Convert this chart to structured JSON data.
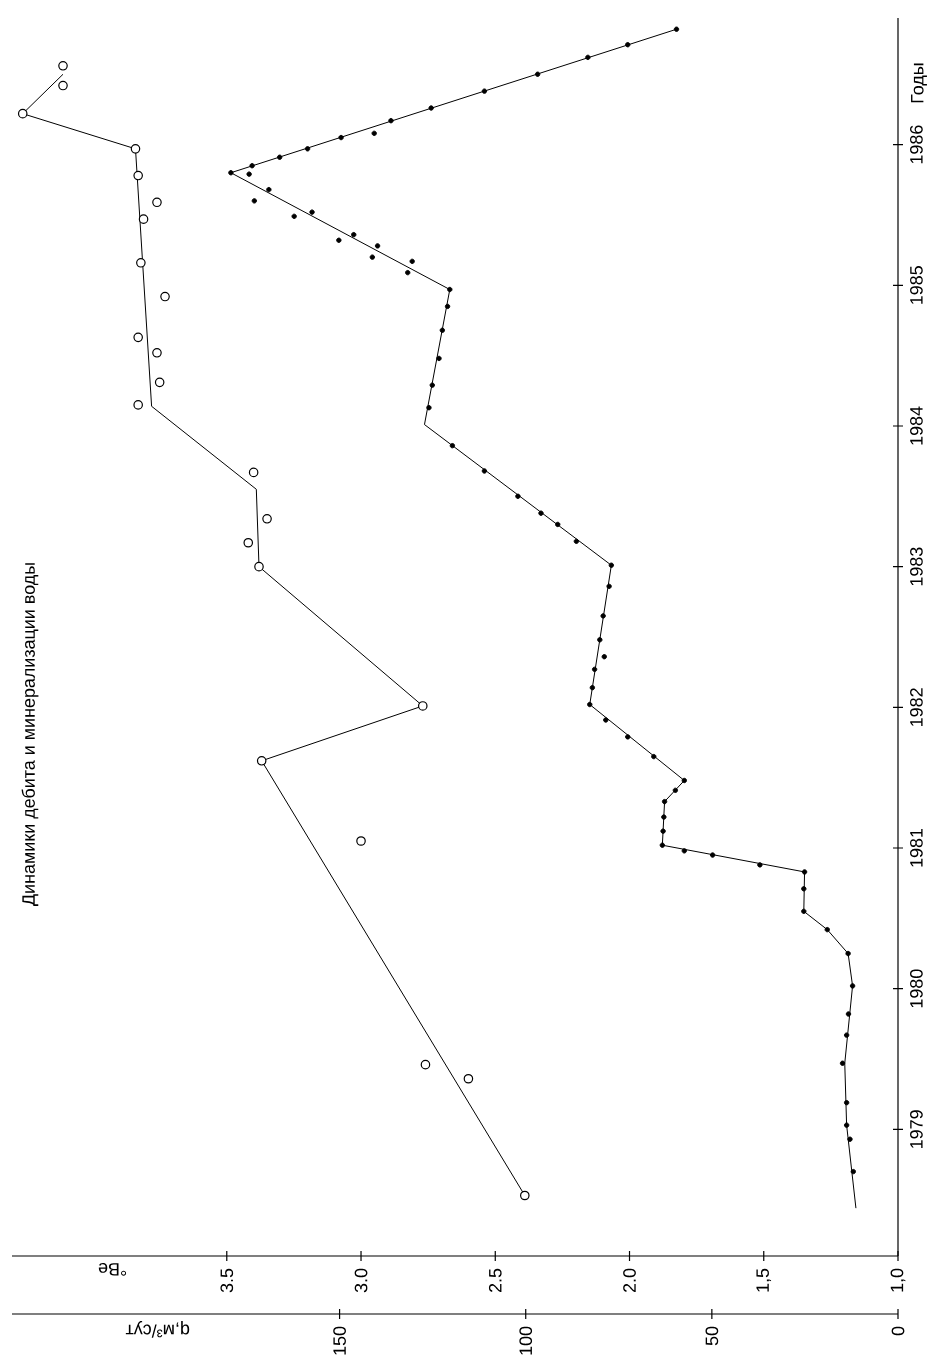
{
  "chart_data": {
    "type": "line",
    "title": "Динамики дебита и минерализации воды",
    "xlabel": "q,м³/сут",
    "x2label": "°Be",
    "ylabel": "Годы",
    "ylim": [
      1978.1,
      1986.9
    ],
    "yticks": [
      1979,
      1980,
      1981,
      1982,
      1983,
      1984,
      1985,
      1986
    ],
    "xlim": [
      238,
      0
    ],
    "xticks": [
      0,
      50,
      100,
      150
    ],
    "x2lim": [
      4.3,
      1.0
    ],
    "x2ticks": [
      {
        "value": 1.0,
        "label": "1,0"
      },
      {
        "value": 1.5,
        "label": "1,5"
      },
      {
        "value": 2.0,
        "label": "2.0"
      },
      2.5,
      {
        "value": 3.0,
        "label": "3.0"
      },
      3.5
    ],
    "series": [
      {
        "type": "scatter",
        "color": "#000000",
        "marker": "circle",
        "values": [
          1978.7,
          1978.93,
          1979.03,
          1979.19,
          1979.47,
          1979.67,
          1979.82,
          1980.02,
          1980.25,
          1980.42,
          1980.55,
          1980.71,
          1980.83,
          1980.88,
          1980.95,
          1980.98,
          1981.02,
          1981.12,
          1981.22,
          1981.33,
          1981.41,
          1981.48,
          1981.65,
          1981.79,
          1981.91,
          1982.02,
          1982.14,
          1982.27,
          1982.36,
          1982.48,
          1982.65,
          1982.86,
          1983.01,
          1983.18,
          1983.3,
          1983.38,
          1983.5,
          1983.68,
          1983.86,
          1984.13,
          1984.29,
          1984.48,
          1984.68,
          1984.85,
          1984.97,
          1985.17,
          1985.09,
          1985.28,
          1985.2,
          1985.36,
          1985.32,
          1985.52,
          1985.49,
          1985.68,
          1985.6,
          1985.8,
          1985.79,
          1985.85,
          1985.91,
          1985.97,
          1986.05,
          1986.08,
          1986.17,
          1986.26,
          1986.38,
          1986.5,
          1986.62,
          1986.71,
          1986.82
        ],
        "x": [
          12.0,
          12.9,
          13.8,
          13.8,
          14.9,
          13.8,
          13.3,
          12.2,
          13.4,
          19.0,
          25.3,
          25.3,
          25.1,
          37.1,
          49.8,
          57.4,
          63.3,
          63.1,
          62.9,
          62.7,
          59.8,
          57.4,
          65.6,
          72.6,
          78.5,
          82.8,
          82.1,
          81.5,
          78.9,
          80.1,
          79.2,
          77.6,
          77.0,
          86.4,
          91.4,
          95.9,
          102.1,
          111.1,
          119.7,
          126.0,
          125.1,
          123.3,
          122.4,
          121.0,
          120.4,
          130.5,
          131.7,
          139.8,
          141.2,
          146.2,
          150.2,
          157.4,
          162.2,
          169.0,
          172.9,
          179.2,
          174.3,
          173.5,
          166.1,
          158.6,
          149.6,
          140.7,
          136.2,
          125.4,
          111.1,
          96.8,
          83.3,
          72.6,
          59.5
        ]
      },
      {
        "type": "line",
        "color": "#000000",
        "marker": "none",
        "values": [
          1978.44,
          1979.03,
          1979.47,
          1980.02,
          1980.25,
          1980.42,
          1980.55,
          1980.83,
          1981.02,
          1981.33,
          1981.48,
          1982.02,
          1982.14,
          1983.01,
          1984.01,
          1984.97,
          1985.8,
          1986.82
        ],
        "x": [
          11.3,
          13.8,
          14.3,
          12.2,
          13.4,
          19.0,
          25.3,
          25.1,
          63.3,
          62.7,
          57.4,
          82.8,
          82.1,
          77.0,
          127.2,
          120.4,
          179.2,
          59.5
        ]
      },
      {
        "type": "scatter",
        "axis": "x2",
        "color": "#000000",
        "marker": "circle",
        "values": [
          1978.53,
          1979.36,
          1979.46,
          1981.05,
          1982.01,
          1981.62,
          1983.0,
          1983.17,
          1983.34,
          1983.67,
          1984.15,
          1984.31,
          1984.52,
          1984.63,
          1984.92,
          1985.16,
          1985.47,
          1985.59,
          1985.78,
          1985.97,
          1986.42,
          1986.56,
          1986.22
        ],
        "x": [
          2.39,
          2.6,
          2.76,
          3.0,
          2.77,
          3.37,
          3.38,
          3.42,
          3.35,
          3.4,
          3.83,
          3.75,
          3.76,
          3.83,
          3.73,
          3.82,
          3.81,
          3.76,
          3.83,
          3.84,
          4.11,
          4.11,
          4.26
        ]
      },
      {
        "type": "line",
        "axis": "x2",
        "color": "#000000",
        "marker": "none",
        "values": [
          1978.53,
          1981.62,
          1982.01,
          1983.0,
          1983.55,
          1984.14,
          1985.97,
          1986.22,
          1986.5
        ],
        "x": [
          2.39,
          3.37,
          2.77,
          3.38,
          3.39,
          3.78,
          3.84,
          4.26,
          4.11
        ]
      }
    ]
  }
}
